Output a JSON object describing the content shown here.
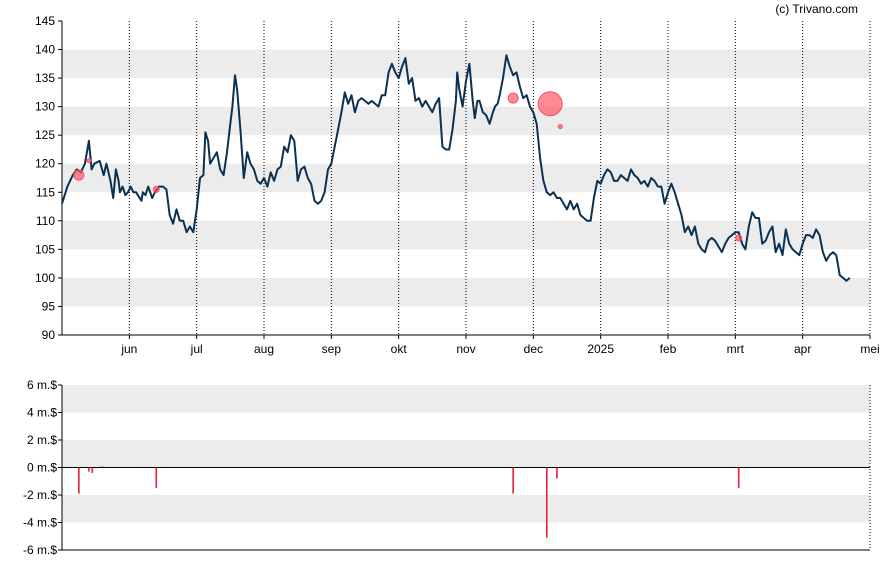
{
  "credit": "(c) Trivano.com",
  "colors": {
    "line": "#0b3152",
    "band": "#ececec",
    "grid": "#000000",
    "marker": "#ff4d5e",
    "volume_neg": "#e8203a",
    "volume_pos": "#2a7a6a"
  },
  "chart_data": [
    {
      "type": "line",
      "title": "",
      "xlabel": "",
      "ylabel": "",
      "ylim": [
        90,
        145
      ],
      "y_ticks": [
        "145",
        "140",
        "135",
        "130",
        "125",
        "120",
        "115",
        "110",
        "105",
        "100",
        "95",
        "90"
      ],
      "x_domain": [
        0,
        12
      ],
      "x_ticks": [
        {
          "label": "jun",
          "x": 1
        },
        {
          "label": "jul",
          "x": 2
        },
        {
          "label": "aug",
          "x": 3
        },
        {
          "label": "sep",
          "x": 4
        },
        {
          "label": "okt",
          "x": 5
        },
        {
          "label": "nov",
          "x": 6
        },
        {
          "label": "dec",
          "x": 7
        },
        {
          "label": "2025",
          "x": 8
        },
        {
          "label": "feb",
          "x": 9
        },
        {
          "label": "mrt",
          "x": 10
        },
        {
          "label": "apr",
          "x": 11
        },
        {
          "label": "mei",
          "x": 12
        }
      ],
      "grid": "vertical dotted at month starts; alternating horizontal bands",
      "series": [
        {
          "points": [
            [
              0.0,
              113
            ],
            [
              0.08,
              116
            ],
            [
              0.16,
              118
            ],
            [
              0.22,
              119
            ],
            [
              0.28,
              118.5
            ],
            [
              0.34,
              120
            ],
            [
              0.4,
              124
            ],
            [
              0.44,
              119
            ],
            [
              0.48,
              120
            ],
            [
              0.56,
              120.5
            ],
            [
              0.62,
              118
            ],
            [
              0.66,
              120
            ],
            [
              0.72,
              117
            ],
            [
              0.76,
              114
            ],
            [
              0.8,
              119
            ],
            [
              0.84,
              117
            ],
            [
              0.86,
              115
            ],
            [
              0.9,
              116
            ],
            [
              0.94,
              114.5
            ],
            [
              0.98,
              115
            ],
            [
              1.02,
              116
            ],
            [
              1.06,
              115
            ],
            [
              1.1,
              115
            ],
            [
              1.18,
              113.5
            ],
            [
              1.2,
              115
            ],
            [
              1.24,
              114.5
            ],
            [
              1.28,
              116
            ],
            [
              1.34,
              114
            ],
            [
              1.38,
              115
            ],
            [
              1.44,
              116
            ],
            [
              1.5,
              116
            ],
            [
              1.55,
              115.5
            ],
            [
              1.6,
              111
            ],
            [
              1.65,
              109.5
            ],
            [
              1.7,
              112
            ],
            [
              1.75,
              110
            ],
            [
              1.8,
              110
            ],
            [
              1.85,
              108
            ],
            [
              1.9,
              109
            ],
            [
              1.95,
              108
            ],
            [
              2.0,
              112
            ],
            [
              2.05,
              117.5
            ],
            [
              2.1,
              118
            ],
            [
              2.13,
              125.5
            ],
            [
              2.17,
              124
            ],
            [
              2.2,
              120
            ],
            [
              2.25,
              121
            ],
            [
              2.3,
              122
            ],
            [
              2.35,
              119
            ],
            [
              2.4,
              118
            ],
            [
              2.45,
              122
            ],
            [
              2.5,
              127
            ],
            [
              2.53,
              130
            ],
            [
              2.57,
              135.5
            ],
            [
              2.6,
              133
            ],
            [
              2.65,
              126
            ],
            [
              2.7,
              117.5
            ],
            [
              2.75,
              122
            ],
            [
              2.8,
              120
            ],
            [
              2.85,
              119
            ],
            [
              2.9,
              117
            ],
            [
              2.95,
              116.5
            ],
            [
              3.0,
              117.5
            ],
            [
              3.05,
              116
            ],
            [
              3.1,
              118.5
            ],
            [
              3.15,
              117
            ],
            [
              3.2,
              119
            ],
            [
              3.25,
              119.5
            ],
            [
              3.3,
              123
            ],
            [
              3.35,
              122
            ],
            [
              3.4,
              125
            ],
            [
              3.45,
              124
            ],
            [
              3.5,
              117
            ],
            [
              3.55,
              119
            ],
            [
              3.6,
              119.5
            ],
            [
              3.65,
              117.5
            ],
            [
              3.7,
              116.5
            ],
            [
              3.75,
              113.5
            ],
            [
              3.8,
              113
            ],
            [
              3.85,
              113.5
            ],
            [
              3.9,
              115
            ],
            [
              3.95,
              119
            ],
            [
              4.0,
              120
            ],
            [
              4.05,
              123
            ],
            [
              4.1,
              126
            ],
            [
              4.15,
              129
            ],
            [
              4.2,
              132.5
            ],
            [
              4.25,
              130.5
            ],
            [
              4.3,
              132
            ],
            [
              4.35,
              129
            ],
            [
              4.4,
              131
            ],
            [
              4.45,
              131.5
            ],
            [
              4.5,
              131
            ],
            [
              4.55,
              130.5
            ],
            [
              4.6,
              131
            ],
            [
              4.7,
              130
            ],
            [
              4.75,
              132
            ],
            [
              4.8,
              132
            ],
            [
              4.85,
              136
            ],
            [
              4.9,
              137.5
            ],
            [
              4.95,
              136
            ],
            [
              5.0,
              135
            ],
            [
              5.05,
              137
            ],
            [
              5.1,
              138.5
            ],
            [
              5.15,
              134
            ],
            [
              5.2,
              135
            ],
            [
              5.25,
              131
            ],
            [
              5.3,
              131.5
            ],
            [
              5.35,
              130
            ],
            [
              5.4,
              131
            ],
            [
              5.45,
              130
            ],
            [
              5.5,
              129
            ],
            [
              5.55,
              130.5
            ],
            [
              5.6,
              131.5
            ],
            [
              5.65,
              123
            ],
            [
              5.7,
              122.5
            ],
            [
              5.75,
              122.5
            ],
            [
              5.8,
              126
            ],
            [
              5.85,
              131
            ],
            [
              5.87,
              136
            ],
            [
              5.9,
              133
            ],
            [
              5.95,
              130
            ],
            [
              6.0,
              134.5
            ],
            [
              6.05,
              137.5
            ],
            [
              6.1,
              131
            ],
            [
              6.13,
              128
            ],
            [
              6.17,
              131
            ],
            [
              6.2,
              131
            ],
            [
              6.25,
              129
            ],
            [
              6.3,
              128.5
            ],
            [
              6.35,
              127
            ],
            [
              6.4,
              129
            ],
            [
              6.43,
              130
            ],
            [
              6.47,
              130.5
            ],
            [
              6.5,
              132
            ],
            [
              6.55,
              135
            ],
            [
              6.6,
              139
            ],
            [
              6.65,
              137
            ],
            [
              6.7,
              135.5
            ],
            [
              6.75,
              136
            ],
            [
              6.8,
              133.5
            ],
            [
              6.85,
              131.5
            ],
            [
              6.9,
              132
            ],
            [
              6.95,
              130
            ],
            [
              7.0,
              129
            ],
            [
              7.05,
              127
            ],
            [
              7.1,
              121
            ],
            [
              7.15,
              117
            ],
            [
              7.2,
              115
            ],
            [
              7.25,
              114.5
            ],
            [
              7.3,
              115
            ],
            [
              7.35,
              114
            ],
            [
              7.4,
              114
            ],
            [
              7.45,
              113
            ],
            [
              7.5,
              112
            ],
            [
              7.55,
              113.5
            ],
            [
              7.6,
              112
            ],
            [
              7.65,
              113
            ],
            [
              7.7,
              111
            ],
            [
              7.75,
              110.5
            ],
            [
              7.8,
              110
            ],
            [
              7.85,
              110
            ],
            [
              7.9,
              114
            ],
            [
              7.95,
              117
            ],
            [
              8.0,
              116.5
            ],
            [
              8.05,
              118
            ],
            [
              8.1,
              119
            ],
            [
              8.15,
              118.5
            ],
            [
              8.2,
              117
            ],
            [
              8.25,
              117
            ],
            [
              8.3,
              118
            ],
            [
              8.35,
              117.5
            ],
            [
              8.4,
              117
            ],
            [
              8.45,
              119
            ],
            [
              8.5,
              118
            ],
            [
              8.55,
              117.5
            ],
            [
              8.6,
              116.5
            ],
            [
              8.65,
              117
            ],
            [
              8.7,
              116
            ],
            [
              8.75,
              117.5
            ],
            [
              8.8,
              117
            ],
            [
              8.85,
              116
            ],
            [
              8.9,
              116
            ],
            [
              8.95,
              113
            ],
            [
              9.0,
              115
            ],
            [
              9.05,
              116.5
            ],
            [
              9.1,
              115
            ],
            [
              9.15,
              113
            ],
            [
              9.2,
              111
            ],
            [
              9.25,
              108
            ],
            [
              9.3,
              109
            ],
            [
              9.35,
              107.5
            ],
            [
              9.4,
              109
            ],
            [
              9.45,
              106
            ],
            [
              9.5,
              105
            ],
            [
              9.55,
              104.5
            ],
            [
              9.6,
              106.5
            ],
            [
              9.65,
              107
            ],
            [
              9.7,
              106.5
            ],
            [
              9.75,
              105.5
            ],
            [
              9.8,
              104.5
            ],
            [
              9.85,
              106
            ],
            [
              9.9,
              107
            ],
            [
              9.95,
              107.5
            ],
            [
              10.0,
              108
            ],
            [
              10.05,
              108
            ],
            [
              10.1,
              106
            ],
            [
              10.15,
              105
            ],
            [
              10.2,
              109
            ],
            [
              10.25,
              111.5
            ],
            [
              10.3,
              110.5
            ],
            [
              10.35,
              110.5
            ],
            [
              10.4,
              106
            ],
            [
              10.45,
              106.5
            ],
            [
              10.5,
              108
            ],
            [
              10.55,
              109
            ],
            [
              10.6,
              104.5
            ],
            [
              10.65,
              106
            ],
            [
              10.7,
              104
            ],
            [
              10.75,
              108.5
            ],
            [
              10.8,
              106
            ],
            [
              10.85,
              105
            ],
            [
              10.9,
              104.5
            ],
            [
              10.95,
              104
            ],
            [
              11.0,
              106
            ],
            [
              11.05,
              107.5
            ],
            [
              11.1,
              107.5
            ],
            [
              11.15,
              107
            ],
            [
              11.2,
              108.5
            ],
            [
              11.25,
              107.5
            ],
            [
              11.3,
              104.5
            ],
            [
              11.35,
              103
            ],
            [
              11.4,
              104
            ],
            [
              11.45,
              104.5
            ],
            [
              11.5,
              104
            ],
            [
              11.55,
              100.5
            ],
            [
              11.6,
              100
            ],
            [
              11.65,
              99.5
            ],
            [
              11.7,
              100
            ]
          ]
        }
      ],
      "markers": [
        {
          "x": 0.25,
          "y": 118,
          "size": 5
        },
        {
          "x": 0.4,
          "y": 120.5,
          "size": 2
        },
        {
          "x": 1.4,
          "y": 115.5,
          "size": 3
        },
        {
          "x": 6.7,
          "y": 131.5,
          "size": 5
        },
        {
          "x": 7.25,
          "y": 130.5,
          "size": 12
        },
        {
          "x": 7.4,
          "y": 126.5,
          "size": 2
        },
        {
          "x": 10.05,
          "y": 107,
          "size": 3
        }
      ]
    },
    {
      "type": "bar",
      "title": "",
      "ylabel": "",
      "ylim": [
        -6,
        6
      ],
      "y_ticks": [
        "6 m.$",
        "4 m.$",
        "2 m.$",
        "0 m.$",
        "-2 m.$",
        "-4 m.$",
        "-6 m.$"
      ],
      "x_domain": [
        0,
        12
      ],
      "bars": [
        {
          "x": 0.25,
          "value": -1.9
        },
        {
          "x": 0.4,
          "value": -0.3
        },
        {
          "x": 0.45,
          "value": -0.4
        },
        {
          "x": 0.6,
          "value": 0.1
        },
        {
          "x": 1.4,
          "value": -1.5
        },
        {
          "x": 6.7,
          "value": -1.9
        },
        {
          "x": 7.2,
          "value": -5.1
        },
        {
          "x": 7.35,
          "value": -0.8
        },
        {
          "x": 10.05,
          "value": -1.5
        }
      ]
    }
  ]
}
